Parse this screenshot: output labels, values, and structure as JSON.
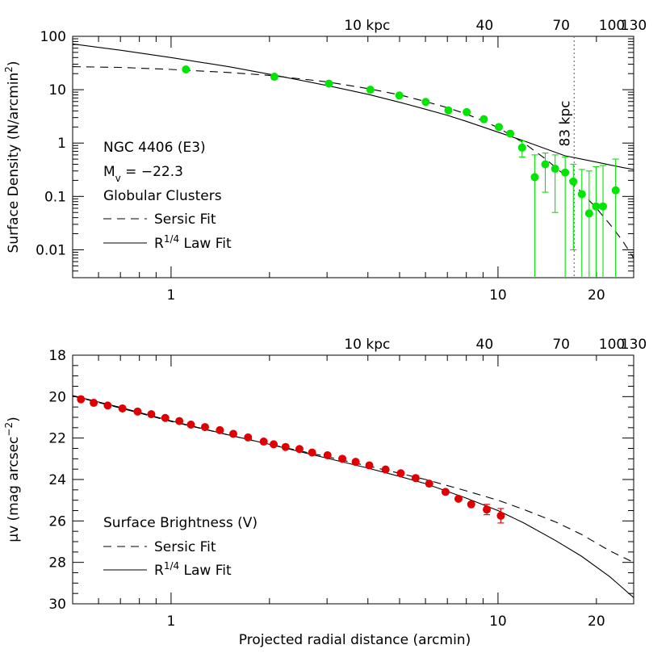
{
  "chart_data": [
    {
      "type": "scatter",
      "id": "top",
      "xscale": "log",
      "yscale": "log",
      "xlim": [
        0.5,
        26
      ],
      "ylim": [
        0.003,
        100
      ],
      "xticks": [
        {
          "v": 1,
          "label": "1"
        },
        {
          "v": 10,
          "label": "10"
        },
        {
          "v": 20,
          "label": "20"
        }
      ],
      "yticks": [
        {
          "v": 0.01,
          "label": "0.01"
        },
        {
          "v": 0.1,
          "label": "0.1"
        },
        {
          "v": 1,
          "label": "1"
        },
        {
          "v": 10,
          "label": "10"
        },
        {
          "v": 100,
          "label": "100"
        }
      ],
      "ylabel": "Surface Density (N/arcmin²)",
      "top_axis": [
        {
          "v": 3.98,
          "label": "10 kpc"
        },
        {
          "v": 9.1,
          "label": "40"
        },
        {
          "v": 15.6,
          "label": "70"
        },
        {
          "v": 22.3,
          "label": "100"
        },
        {
          "v": 26,
          "label": "130"
        }
      ],
      "vline": {
        "x": 17.1,
        "label": "83 kpc"
      },
      "annotations": [
        "NGC 4406 (E3)",
        "Mv = −22.3",
        "Globular Clusters"
      ],
      "legend": [
        {
          "name": "Sersic Fit",
          "style": "dashed"
        },
        {
          "name": "R¹/⁴ Law Fit",
          "style": "solid"
        }
      ],
      "point_color": "#00e600",
      "points": [
        {
          "x": 1.11,
          "y": 24
        },
        {
          "x": 2.07,
          "y": 17.5
        },
        {
          "x": 3.04,
          "y": 13
        },
        {
          "x": 4.07,
          "y": 10
        },
        {
          "x": 4.99,
          "y": 7.8
        },
        {
          "x": 6.01,
          "y": 5.9
        },
        {
          "x": 7.05,
          "y": 4.1
        },
        {
          "x": 8.02,
          "y": 3.8
        },
        {
          "x": 9.05,
          "y": 2.8
        },
        {
          "x": 10.06,
          "y": 2.0
        },
        {
          "x": 10.9,
          "y": 1.5
        },
        {
          "x": 11.85,
          "y": 0.82,
          "lo": 0.55,
          "hi": 1.1
        },
        {
          "x": 12.95,
          "y": 0.23,
          "lo": 0.001,
          "hi": 0.6
        },
        {
          "x": 13.95,
          "y": 0.4,
          "lo": 0.12,
          "hi": 0.65
        },
        {
          "x": 14.95,
          "y": 0.33,
          "lo": 0.05,
          "hi": 0.6
        },
        {
          "x": 16.05,
          "y": 0.28,
          "lo": 0.001,
          "hi": 0.55
        },
        {
          "x": 17.0,
          "y": 0.19,
          "lo": 0.01,
          "hi": 0.4
        },
        {
          "x": 18.05,
          "y": 0.11,
          "lo": 0.001,
          "hi": 0.32
        },
        {
          "x": 19.0,
          "y": 0.048,
          "lo": 0.001,
          "hi": 0.3
        },
        {
          "x": 19.95,
          "y": 0.065,
          "lo": 0.001,
          "hi": 0.36
        },
        {
          "x": 20.95,
          "y": 0.065,
          "lo": 0.001,
          "hi": 0.38
        },
        {
          "x": 22.9,
          "y": 0.13,
          "lo": 0.001,
          "hi": 0.5
        }
      ],
      "sersic_curve": [
        {
          "x": 0.5,
          "y": 27
        },
        {
          "x": 0.7,
          "y": 26.2
        },
        {
          "x": 1,
          "y": 24
        },
        {
          "x": 1.5,
          "y": 21
        },
        {
          "x": 2,
          "y": 18.5
        },
        {
          "x": 3,
          "y": 14
        },
        {
          "x": 4,
          "y": 10.5
        },
        {
          "x": 5,
          "y": 8
        },
        {
          "x": 6,
          "y": 6
        },
        {
          "x": 7,
          "y": 4.6
        },
        {
          "x": 8,
          "y": 3.5
        },
        {
          "x": 9,
          "y": 2.6
        },
        {
          "x": 10,
          "y": 1.95
        },
        {
          "x": 12,
          "y": 1.0
        },
        {
          "x": 14,
          "y": 0.5
        },
        {
          "x": 16,
          "y": 0.25
        },
        {
          "x": 18,
          "y": 0.12
        },
        {
          "x": 20,
          "y": 0.06
        },
        {
          "x": 22,
          "y": 0.03
        },
        {
          "x": 24,
          "y": 0.015
        },
        {
          "x": 26,
          "y": 0.007
        }
      ],
      "r14_curve": [
        {
          "x": 0.5,
          "y": 72
        },
        {
          "x": 0.7,
          "y": 55
        },
        {
          "x": 1,
          "y": 40
        },
        {
          "x": 1.5,
          "y": 27
        },
        {
          "x": 2,
          "y": 19.5
        },
        {
          "x": 3,
          "y": 12
        },
        {
          "x": 4,
          "y": 8.2
        },
        {
          "x": 5,
          "y": 5.8
        },
        {
          "x": 6,
          "y": 4.3
        },
        {
          "x": 7,
          "y": 3.3
        },
        {
          "x": 8,
          "y": 2.55
        },
        {
          "x": 10,
          "y": 1.6
        },
        {
          "x": 12,
          "y": 1.1
        },
        {
          "x": 14,
          "y": 0.78
        },
        {
          "x": 16,
          "y": 0.58
        },
        {
          "x": 18,
          "y": 0.5
        },
        {
          "x": 20,
          "y": 0.44
        },
        {
          "x": 22,
          "y": 0.39
        },
        {
          "x": 24,
          "y": 0.35
        },
        {
          "x": 26,
          "y": 0.32
        }
      ]
    },
    {
      "type": "scatter",
      "id": "bottom",
      "xscale": "log",
      "yscale": "linear",
      "yinverted": true,
      "xlim": [
        0.5,
        26
      ],
      "ylim": [
        18,
        30
      ],
      "xticks": [
        {
          "v": 1,
          "label": "1"
        },
        {
          "v": 10,
          "label": "10"
        },
        {
          "v": 20,
          "label": "20"
        }
      ],
      "yticks": [
        {
          "v": 18,
          "label": "18"
        },
        {
          "v": 20,
          "label": "20"
        },
        {
          "v": 22,
          "label": "22"
        },
        {
          "v": 24,
          "label": "24"
        },
        {
          "v": 26,
          "label": "26"
        },
        {
          "v": 28,
          "label": "28"
        },
        {
          "v": 30,
          "label": "30"
        }
      ],
      "ylabel": "μv (mag arcsec⁻²)",
      "xlabel": "Projected radial distance (arcmin)",
      "top_axis": [
        {
          "v": 3.98,
          "label": "10 kpc"
        },
        {
          "v": 9.1,
          "label": "40"
        },
        {
          "v": 15.6,
          "label": "70"
        },
        {
          "v": 22.3,
          "label": "100"
        },
        {
          "v": 26,
          "label": "130"
        }
      ],
      "annotations": [
        "Surface Brightness (V)"
      ],
      "legend": [
        {
          "name": "Sersic Fit",
          "style": "dashed"
        },
        {
          "name": "R¹/⁴ Law Fit",
          "style": "solid"
        }
      ],
      "point_color": "#e00000",
      "points": [
        {
          "x": 0.53,
          "y": 20.13
        },
        {
          "x": 0.58,
          "y": 20.3
        },
        {
          "x": 0.64,
          "y": 20.43
        },
        {
          "x": 0.71,
          "y": 20.57
        },
        {
          "x": 0.79,
          "y": 20.72
        },
        {
          "x": 0.87,
          "y": 20.85
        },
        {
          "x": 0.96,
          "y": 21.03
        },
        {
          "x": 1.06,
          "y": 21.18
        },
        {
          "x": 1.15,
          "y": 21.35
        },
        {
          "x": 1.27,
          "y": 21.47
        },
        {
          "x": 1.41,
          "y": 21.62
        },
        {
          "x": 1.55,
          "y": 21.8
        },
        {
          "x": 1.72,
          "y": 21.97
        },
        {
          "x": 1.92,
          "y": 22.17
        },
        {
          "x": 2.06,
          "y": 22.3
        },
        {
          "x": 2.24,
          "y": 22.43
        },
        {
          "x": 2.47,
          "y": 22.53
        },
        {
          "x": 2.7,
          "y": 22.7
        },
        {
          "x": 3.01,
          "y": 22.83
        },
        {
          "x": 3.34,
          "y": 23.0
        },
        {
          "x": 3.67,
          "y": 23.15
        },
        {
          "x": 4.04,
          "y": 23.32
        },
        {
          "x": 4.53,
          "y": 23.52
        },
        {
          "x": 5.04,
          "y": 23.7
        },
        {
          "x": 5.6,
          "y": 23.93
        },
        {
          "x": 6.16,
          "y": 24.2
        },
        {
          "x": 6.91,
          "y": 24.6
        },
        {
          "x": 7.57,
          "y": 24.93
        },
        {
          "x": 8.28,
          "y": 25.2
        },
        {
          "x": 9.24,
          "y": 25.45,
          "err": 0.25
        },
        {
          "x": 10.2,
          "y": 25.75,
          "err": 0.35
        }
      ],
      "sersic_curve": [
        {
          "x": 0.5,
          "y": 19.97
        },
        {
          "x": 0.7,
          "y": 20.55
        },
        {
          "x": 1,
          "y": 21.2
        },
        {
          "x": 1.5,
          "y": 21.85
        },
        {
          "x": 2,
          "y": 22.3
        },
        {
          "x": 3,
          "y": 22.9
        },
        {
          "x": 4,
          "y": 23.35
        },
        {
          "x": 5,
          "y": 23.7
        },
        {
          "x": 6,
          "y": 24.0
        },
        {
          "x": 8,
          "y": 24.55
        },
        {
          "x": 10,
          "y": 25.0
        },
        {
          "x": 12,
          "y": 25.45
        },
        {
          "x": 15,
          "y": 26.05
        },
        {
          "x": 18,
          "y": 26.65
        },
        {
          "x": 22,
          "y": 27.45
        },
        {
          "x": 26,
          "y": 28.0
        }
      ],
      "r14_curve": [
        {
          "x": 0.5,
          "y": 19.95
        },
        {
          "x": 0.7,
          "y": 20.52
        },
        {
          "x": 1,
          "y": 21.17
        },
        {
          "x": 1.5,
          "y": 21.85
        },
        {
          "x": 2,
          "y": 22.3
        },
        {
          "x": 3,
          "y": 22.97
        },
        {
          "x": 4,
          "y": 23.45
        },
        {
          "x": 5,
          "y": 23.85
        },
        {
          "x": 6,
          "y": 24.2
        },
        {
          "x": 8,
          "y": 24.9
        },
        {
          "x": 10,
          "y": 25.5
        },
        {
          "x": 12,
          "y": 26.1
        },
        {
          "x": 15,
          "y": 26.95
        },
        {
          "x": 18,
          "y": 27.7
        },
        {
          "x": 22,
          "y": 28.7
        },
        {
          "x": 26,
          "y": 29.7
        }
      ]
    }
  ]
}
